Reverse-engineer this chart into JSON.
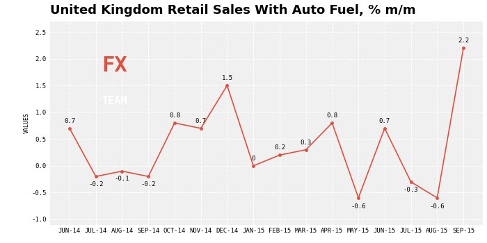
{
  "title": "United Kingdom Retail Sales With Auto Fuel, % m/m",
  "ylabel": "VALUES",
  "categories": [
    "JUN-14",
    "JUL-14",
    "AUG-14",
    "SEP-14",
    "OCT-14",
    "NOV-14",
    "DEC-14",
    "JAN-15",
    "FEB-15",
    "MAR-15",
    "APR-15",
    "MAY-15",
    "JUN-15",
    "JUL-15",
    "AUG-15",
    "SEP-15"
  ],
  "values": [
    0.7,
    -0.2,
    -0.1,
    -0.2,
    0.8,
    0.7,
    1.5,
    0.0,
    0.2,
    0.3,
    0.8,
    -0.6,
    0.7,
    -0.3,
    -0.6,
    2.2
  ],
  "line_color": "#e05040",
  "marker_color": "#e05040",
  "bg_color": "#ffffff",
  "plot_bg_color": "#f0f0f0",
  "grid_color": "#ffffff",
  "title_fontsize": 13,
  "label_fontsize": 6.5,
  "ylabel_fontsize": 6,
  "tick_fontsize": 6.5,
  "ylim": [
    -1.1,
    2.7
  ],
  "yticks": [
    -1.0,
    -0.5,
    0.0,
    0.5,
    1.0,
    1.5,
    2.0,
    2.5
  ],
  "logo_bg": "#707070",
  "logo_fx_color": "#e05040",
  "logo_team_color": "#ffffff"
}
